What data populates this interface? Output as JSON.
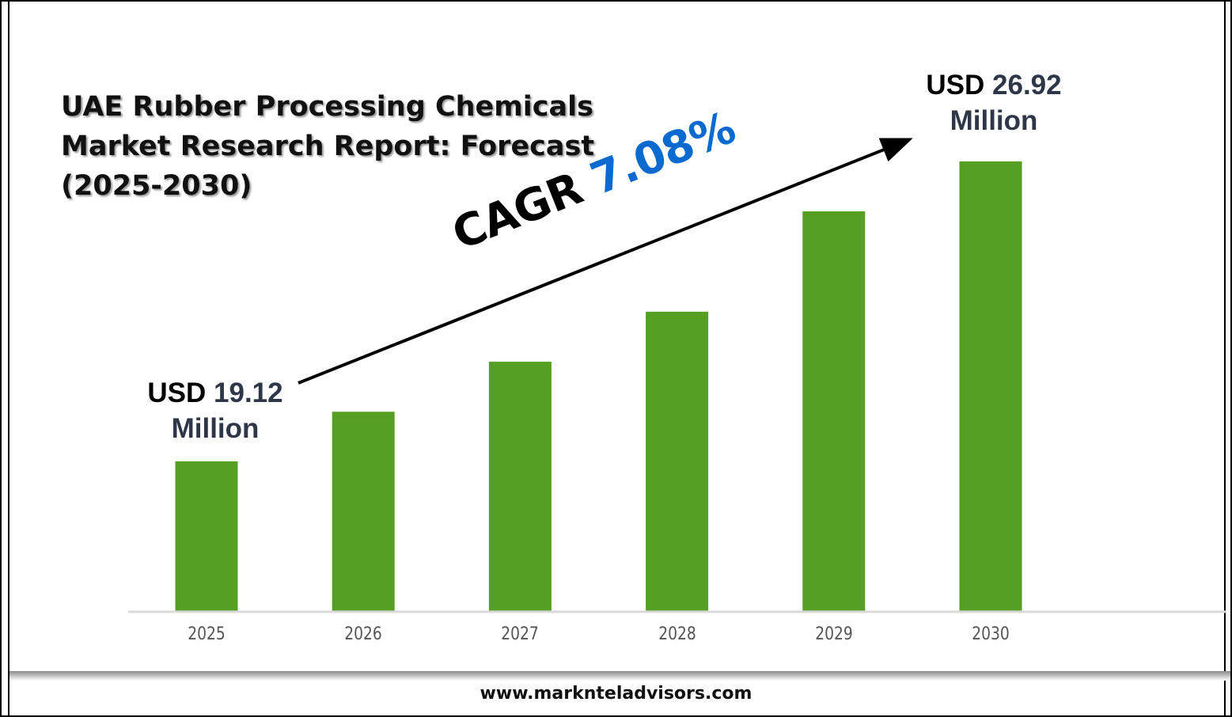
{
  "chart_data": {
    "type": "bar",
    "title": "UAE Rubber Processing Chemicals Market Research Report: Forecast (2025-2030)",
    "title_lines": [
      "UAE Rubber Processing Chemicals",
      "Market Research Report: Forecast",
      "(2025-2030)"
    ],
    "categories": [
      "2025",
      "2026",
      "2027",
      "2028",
      "2029",
      "2030"
    ],
    "values": [
      19.12,
      20.41,
      21.71,
      23.01,
      25.62,
      26.92
    ],
    "unit": "USD Million",
    "ylim": [
      15.23,
      28
    ],
    "xlabel": "",
    "ylabel": "",
    "grid": false,
    "bar_color": "#55a023",
    "annotations": {
      "start": {
        "prefix": "USD",
        "value": "19.12",
        "suffix": "Million"
      },
      "end": {
        "prefix": "USD",
        "value": "26.92",
        "suffix": "Million"
      },
      "cagr_label": "CAGR",
      "cagr_value": "7.08%"
    }
  },
  "footer": {
    "website": "www.marknteladvisors.com"
  }
}
